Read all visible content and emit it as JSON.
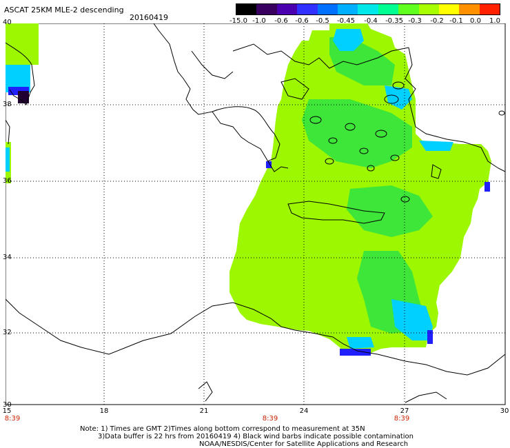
{
  "header": {
    "title": "ASCAT 25KM MLE-2 descending",
    "date": "20160419"
  },
  "colorbar": {
    "labels": [
      "-15.0",
      "-1.0",
      "-0.6",
      "-0.6",
      "-0.5",
      "-0.45",
      "-0.4",
      "-0.35",
      "-0.3",
      "-0.2",
      "-0.1",
      "0.0",
      "1.0"
    ],
    "colors": [
      "#000000",
      "#3a0060",
      "#4b00b0",
      "#3030ff",
      "#0070ff",
      "#00b0ff",
      "#00e8e8",
      "#00ff90",
      "#60ff20",
      "#a8ff00",
      "#ffff00",
      "#ff9000",
      "#ff2000"
    ]
  },
  "axes": {
    "lat_labels": [
      "40",
      "38",
      "36",
      "34",
      "32",
      "30"
    ],
    "lon_labels": [
      "15",
      "18",
      "21",
      "24",
      "27",
      "30"
    ],
    "time_labels": [
      "8:39",
      "8:39",
      "8:39"
    ]
  },
  "notes": {
    "line1": "Note: 1) Times are GMT 2)Times along bottom correspond to measurement at 35N",
    "line2": "3)Data buffer is 22 hrs from 20160419 4) Black wind barbs indicate possible contamination",
    "line3": "NOAA/NESDIS/Center for Satellite Applications and Research"
  },
  "map": {
    "swath_color": "#9cf700",
    "moderate_color": "#3ee63a",
    "low_color": "#00d0ff",
    "very_low_color": "#2020ff",
    "darkest_color": "#200030"
  }
}
